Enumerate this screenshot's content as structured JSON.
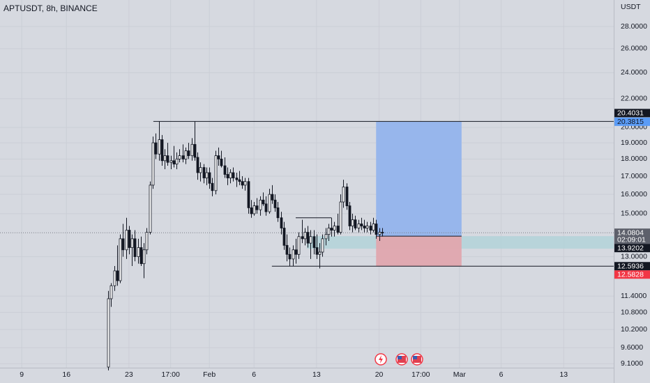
{
  "chart_data": {
    "type": "candlestick",
    "title": "APTUSDT, 8h, BINANCE",
    "y_unit": "USDT",
    "log_scale": true,
    "grid": true,
    "xlim": [
      -36.3,
      169.8
    ],
    "ylim": [
      8.98,
      30.58
    ],
    "xticks": [
      {
        "value": -29,
        "label": "9"
      },
      {
        "value": -14,
        "label": "16"
      },
      {
        "value": 7,
        "label": "23"
      },
      {
        "value": 21,
        "label": "17:00"
      },
      {
        "value": 34,
        "label": "Feb"
      },
      {
        "value": 49,
        "label": "6"
      },
      {
        "value": 70,
        "label": "13"
      },
      {
        "value": 91,
        "label": "20"
      },
      {
        "value": 105,
        "label": "17:00"
      },
      {
        "value": 118,
        "label": "Mar"
      },
      {
        "value": 132,
        "label": "6"
      },
      {
        "value": 153,
        "label": "13"
      }
    ],
    "yticks": [
      {
        "value": 28,
        "label": "28.0000"
      },
      {
        "value": 26,
        "label": "26.0000"
      },
      {
        "value": 24,
        "label": "24.0000"
      },
      {
        "value": 22,
        "label": "22.0000"
      },
      {
        "value": 20,
        "label": "20.0000"
      },
      {
        "value": 19,
        "label": "19.0000"
      },
      {
        "value": 18,
        "label": "18.0000"
      },
      {
        "value": 17,
        "label": "17.0000"
      },
      {
        "value": 16,
        "label": "16.0000"
      },
      {
        "value": 15,
        "label": "15.0000"
      },
      {
        "value": 13,
        "label": "13.0000"
      },
      {
        "value": 11.4,
        "label": "11.4000"
      },
      {
        "value": 10.8,
        "label": "10.8000"
      },
      {
        "value": 10.2,
        "label": "10.2000"
      },
      {
        "value": 9.6,
        "label": "9.6000"
      },
      {
        "value": 9.1,
        "label": "9.1000"
      }
    ],
    "up_color": "#ffffff",
    "down_color": "#131722",
    "outline_color": "#131722",
    "open": [
      9.0,
      11.3,
      11.8,
      12.4,
      12.0,
      13.8,
      13.3,
      14.2,
      13.4,
      13.8,
      13.0,
      13.4,
      12.7,
      13.3,
      14.1,
      16.5,
      19.0,
      18.3,
      19.2,
      17.9,
      18.2,
      17.8,
      17.9,
      17.7,
      18.0,
      18.2,
      18.0,
      18.5,
      18.2,
      18.9,
      18.1,
      17.2,
      17.5,
      16.9,
      17.2,
      16.6,
      16.2,
      18.2,
      18.0,
      17.6,
      17.1,
      16.9,
      17.2,
      16.9,
      16.8,
      16.7,
      16.5,
      16.7,
      15.3,
      15.0,
      15.4,
      15.2,
      15.7,
      15.5,
      15.1,
      16.0,
      15.7,
      15.3,
      14.8,
      14.3,
      13.5,
      13.1,
      12.9,
      13.3,
      13.1,
      13.9,
      13.8,
      14.1,
      13.6,
      13.9,
      13.4,
      13.1,
      13.2,
      13.8,
      14.0,
      14.3,
      14.2,
      14.4,
      14.1,
      15.6,
      16.4,
      15.4,
      14.4,
      14.7,
      14.3,
      14.5,
      14.4,
      14.3,
      14.4,
      14.2,
      14.5,
      14.0,
      14.1
    ],
    "high": [
      11.6,
      11.9,
      12.6,
      13.5,
      14.0,
      14.5,
      14.8,
      14.4,
      14.0,
      14.2,
      13.8,
      13.9,
      13.6,
      14.3,
      16.7,
      19.4,
      19.6,
      20.4,
      19.5,
      18.6,
      19.0,
      18.2,
      18.8,
      18.4,
      18.6,
      18.9,
      18.7,
      19.0,
      19.3,
      20.4,
      18.4,
      17.8,
      17.7,
      17.5,
      17.5,
      16.9,
      18.5,
      18.7,
      18.5,
      18.1,
      17.5,
      17.4,
      17.5,
      17.2,
      17.3,
      17.0,
      16.9,
      16.9,
      15.7,
      15.6,
      15.8,
      15.9,
      16.1,
      15.9,
      16.3,
      16.5,
      16.0,
      15.6,
      15.1,
      14.6,
      14.0,
      13.4,
      13.5,
      13.8,
      14.1,
      14.7,
      14.3,
      14.4,
      14.2,
      14.2,
      14.0,
      13.6,
      14.0,
      14.3,
      14.5,
      14.8,
      14.6,
      15.0,
      16.0,
      16.8,
      16.6,
      15.6,
      15.0,
      14.9,
      14.7,
      14.8,
      14.7,
      14.6,
      14.6,
      14.8,
      14.7,
      14.3,
      14.3
    ],
    "low": [
      8.9,
      11.0,
      11.6,
      11.8,
      11.9,
      13.0,
      12.9,
      13.1,
      12.6,
      12.8,
      12.7,
      12.6,
      12.1,
      13.1,
      14.0,
      16.3,
      18.0,
      17.9,
      17.6,
      17.4,
      17.6,
      17.4,
      17.5,
      17.4,
      17.8,
      17.8,
      17.7,
      18.0,
      17.9,
      17.9,
      16.8,
      16.7,
      16.6,
      16.5,
      16.3,
      15.9,
      16.0,
      17.6,
      17.5,
      16.9,
      16.5,
      16.6,
      16.7,
      16.4,
      16.5,
      16.3,
      16.2,
      15.0,
      14.8,
      14.9,
      15.0,
      14.9,
      15.4,
      14.9,
      15.0,
      15.5,
      15.1,
      14.6,
      14.0,
      13.3,
      12.8,
      12.6,
      12.6,
      12.7,
      12.9,
      13.6,
      13.5,
      13.4,
      12.9,
      13.1,
      12.9,
      12.5,
      13.0,
      13.5,
      13.7,
      13.9,
      13.9,
      14.0,
      14.0,
      15.3,
      15.2,
      14.2,
      14.1,
      14.2,
      14.1,
      14.2,
      14.1,
      14.1,
      14.0,
      14.1,
      13.8,
      13.7,
      13.9
    ],
    "close": [
      11.3,
      11.8,
      12.4,
      12.0,
      13.8,
      13.3,
      14.2,
      13.4,
      13.8,
      13.0,
      13.4,
      12.7,
      13.3,
      14.1,
      16.5,
      19.0,
      18.3,
      19.2,
      17.9,
      18.2,
      17.8,
      17.9,
      17.7,
      18.0,
      18.2,
      18.0,
      18.5,
      18.2,
      18.9,
      18.1,
      17.2,
      17.5,
      16.9,
      17.2,
      16.6,
      16.2,
      18.2,
      18.0,
      17.6,
      17.1,
      16.9,
      17.2,
      16.9,
      16.8,
      16.7,
      16.5,
      16.7,
      15.3,
      15.0,
      15.4,
      15.2,
      15.7,
      15.5,
      15.1,
      16.0,
      15.7,
      15.3,
      14.8,
      14.3,
      13.5,
      13.1,
      12.9,
      13.3,
      13.1,
      13.9,
      13.8,
      14.1,
      13.6,
      13.9,
      13.4,
      13.1,
      13.2,
      13.8,
      14.0,
      14.3,
      14.2,
      14.4,
      14.1,
      15.6,
      16.4,
      15.4,
      14.4,
      14.7,
      14.3,
      14.5,
      14.4,
      14.3,
      14.4,
      14.2,
      14.5,
      14.0,
      14.1,
      14.08
    ],
    "last_price": 14.0804,
    "last_price_color": "#5d606b",
    "countdown": "02:09:01",
    "lines": [
      {
        "value": 20.4031,
        "start": 15.2
      },
      {
        "value": 12.5936,
        "start": 55
      }
    ],
    "segment": {
      "value": 14.8,
      "start": 63,
      "end": 75
    },
    "zone": {
      "low": 13.35,
      "high": 13.92,
      "start": 66.7,
      "color": "#b3d2d8"
    },
    "position": {
      "start": 90,
      "end": 118.7,
      "target": 20.3815,
      "entry": 13.9202,
      "stop": 12.5828,
      "target_color": "#93b4ec",
      "stop_color": "#e0a6ae",
      "target_label_color": "#5b9cf6",
      "stop_label_color": "#f23645"
    }
  }
}
